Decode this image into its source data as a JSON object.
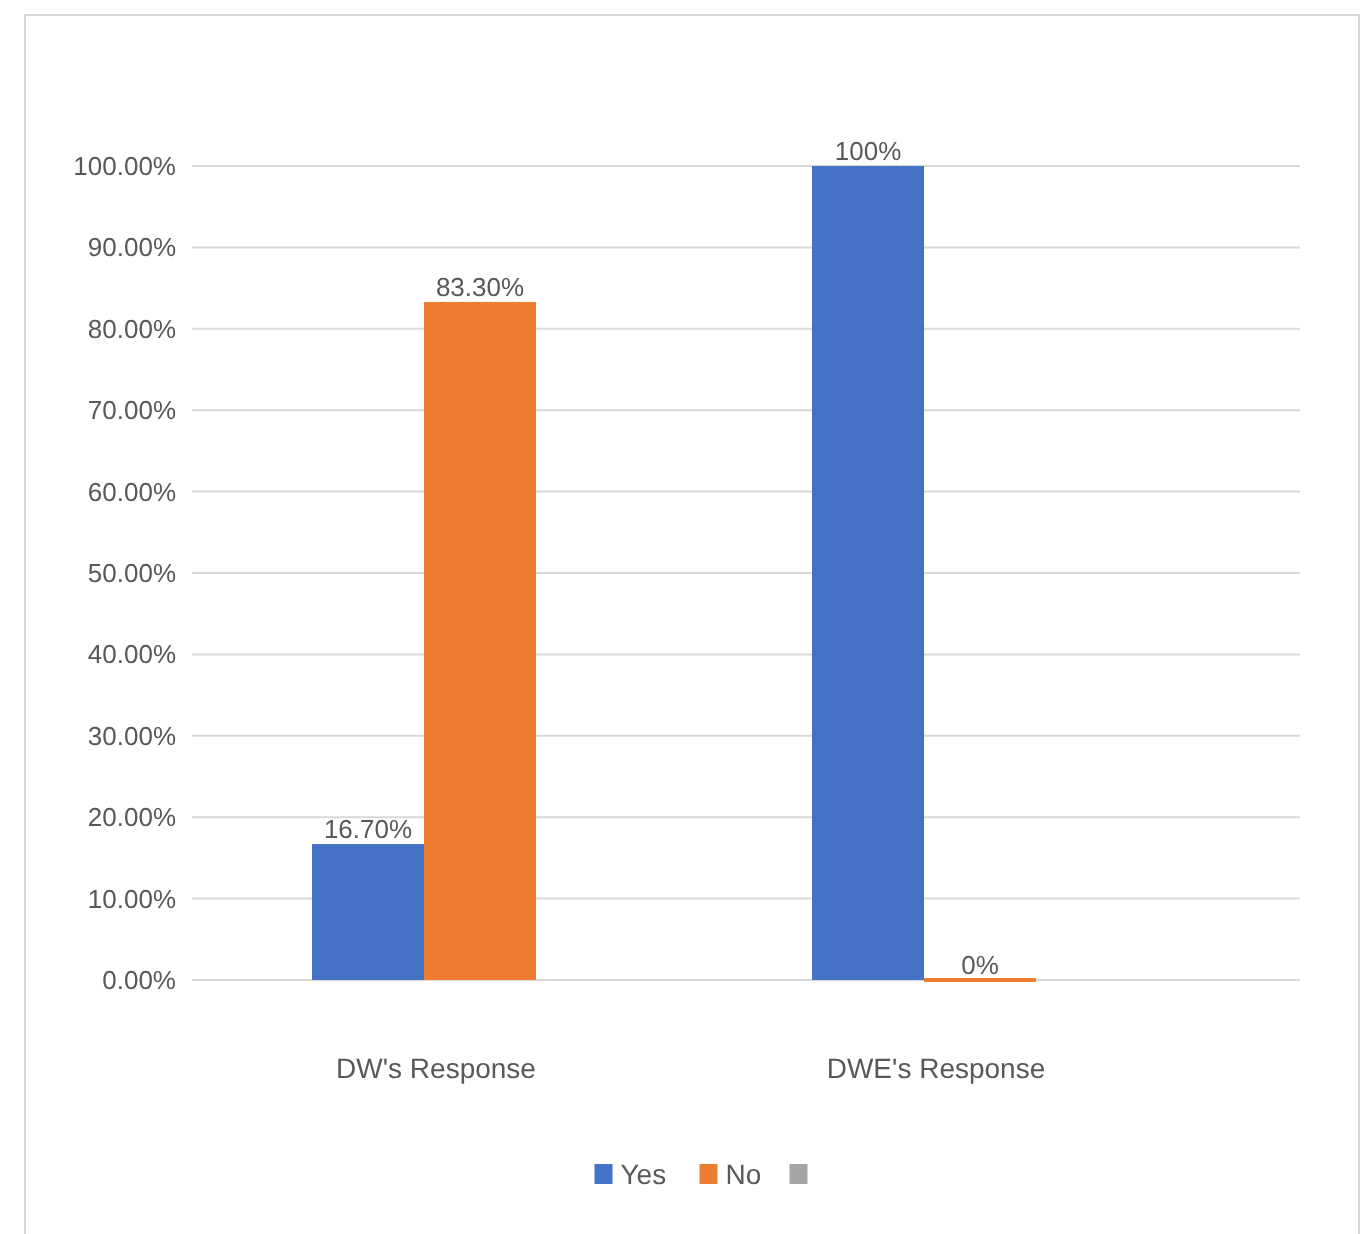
{
  "chart_data": {
    "type": "bar",
    "categories": [
      "DW's Response",
      "DWE's Response"
    ],
    "series": [
      {
        "name": "Yes",
        "color": "#4472c4",
        "values": [
          16.7,
          100
        ],
        "value_labels": [
          "16.70%",
          "100%"
        ]
      },
      {
        "name": "No",
        "color": "#ed7d31",
        "values": [
          83.3,
          0
        ],
        "value_labels": [
          "83.30%",
          "0%"
        ]
      },
      {
        "color": "#a5a5a5",
        "values": [
          null,
          null
        ]
      }
    ],
    "ylim": [
      0,
      100
    ],
    "yticks": [
      {
        "value": 0,
        "label": "0.00%"
      },
      {
        "value": 10,
        "label": "10.00%"
      },
      {
        "value": 20,
        "label": "20.00%"
      },
      {
        "value": 30,
        "label": "30.00%"
      },
      {
        "value": 40,
        "label": "40.00%"
      },
      {
        "value": 50,
        "label": "50.00%"
      },
      {
        "value": 60,
        "label": "60.00%"
      },
      {
        "value": 70,
        "label": "70.00%"
      },
      {
        "value": 80,
        "label": "80.00%"
      },
      {
        "value": 90,
        "label": "90.00%"
      },
      {
        "value": 100,
        "label": "100.00%"
      }
    ],
    "grid": true,
    "legend": "bottom"
  }
}
